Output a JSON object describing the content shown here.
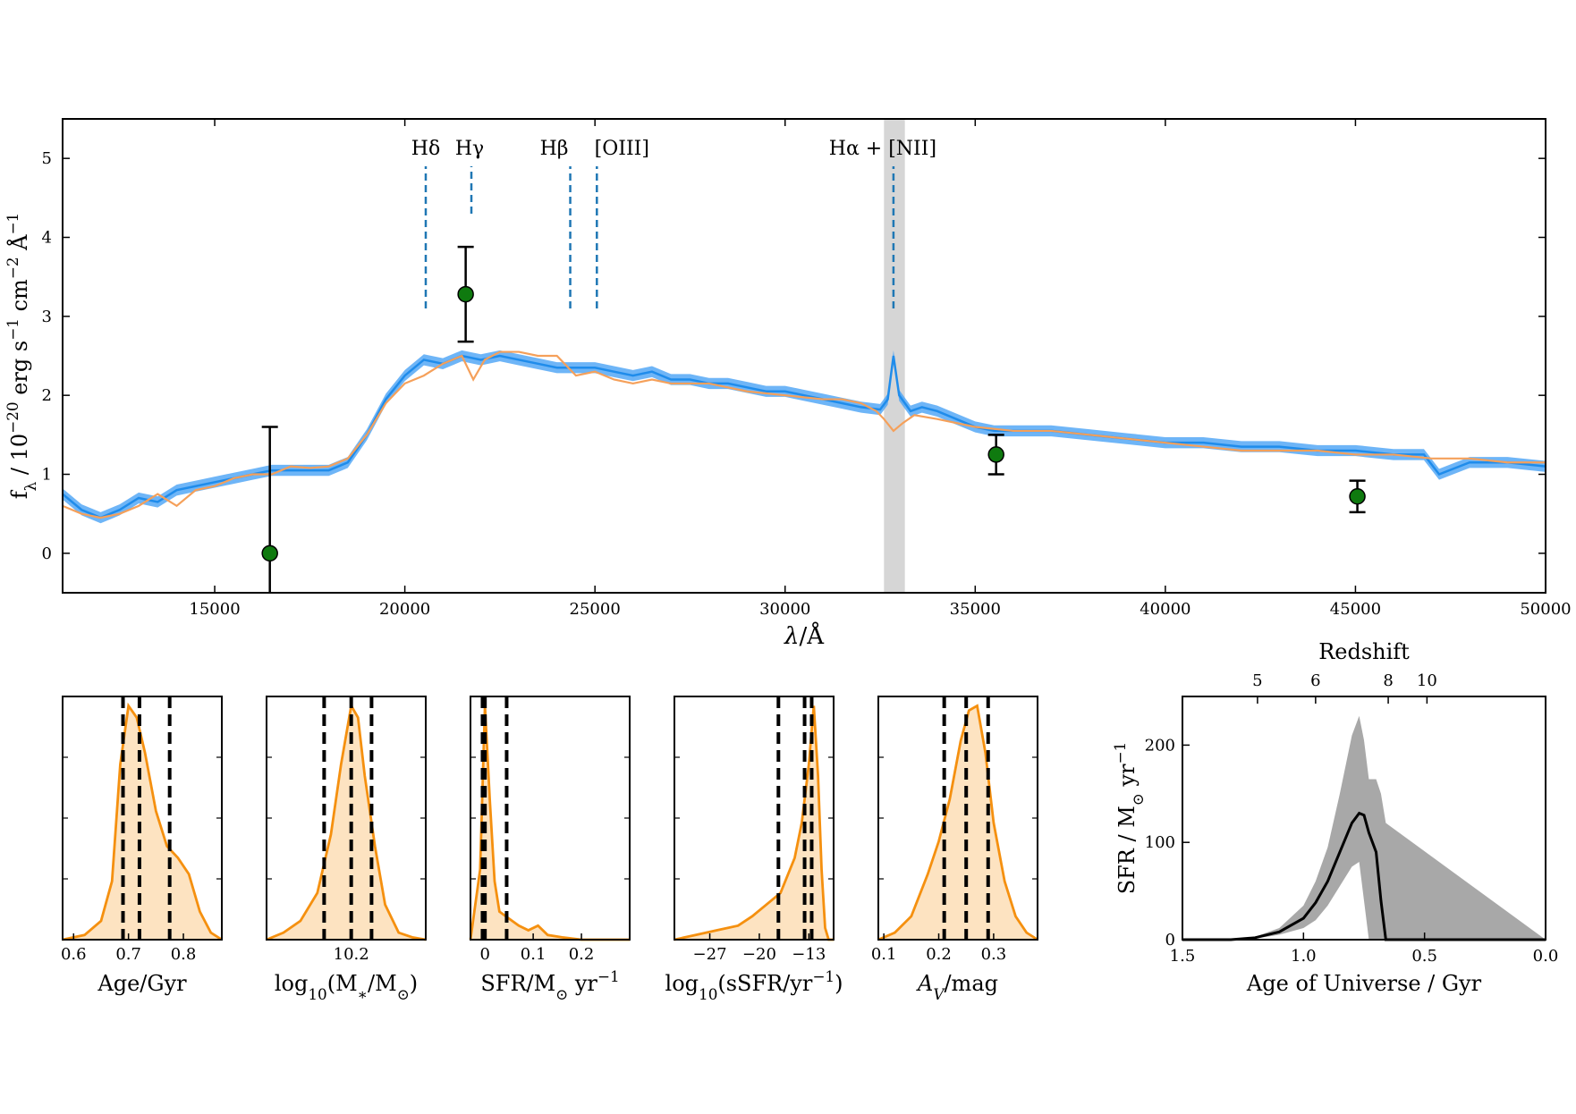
{
  "colors": {
    "spectrum": "#1f8ceb",
    "spectrum_band": "#4aa3f5",
    "model": "#f5a05a",
    "photometry": "#0f7a0f",
    "line_marker": "#1f77b4",
    "shade": "#c8c8c8",
    "posterior": "#f5900f",
    "posterior_fill": "#fde3c1",
    "sfh_band": "#a8a8a8"
  },
  "chart_data": [
    {
      "type": "line",
      "id": "spectrum",
      "xlabel": "λ/Å",
      "ylabel": "f_λ / 10^-20 erg s^-1 cm^-2 Å^-1",
      "xlim": [
        11000,
        50000
      ],
      "ylim": [
        -0.5,
        5.5
      ],
      "xticks": [
        15000,
        20000,
        25000,
        30000,
        35000,
        40000,
        45000,
        50000
      ],
      "yticks": [
        0,
        1,
        2,
        3,
        4,
        5
      ],
      "shaded_region": [
        32600,
        33150
      ],
      "series": [
        {
          "kind": "observed_spectrum",
          "x": [
            11000,
            11500,
            12000,
            12500,
            13000,
            13500,
            14000,
            14500,
            15000,
            15500,
            16000,
            16500,
            17000,
            17500,
            18000,
            18500,
            19000,
            19500,
            20000,
            20500,
            21000,
            21500,
            22000,
            22500,
            23000,
            23500,
            24000,
            24500,
            25000,
            25500,
            26000,
            26500,
            27000,
            27500,
            28000,
            28500,
            29000,
            29500,
            30000,
            30500,
            31000,
            31500,
            32000,
            32500,
            32700,
            32850,
            33000,
            33300,
            33600,
            34000,
            34500,
            35000,
            35500,
            36000,
            37000,
            38000,
            39000,
            40000,
            41000,
            42000,
            43000,
            44000,
            45000,
            46000,
            46800,
            47200,
            48000,
            49000,
            50000
          ],
          "y": [
            0.75,
            0.55,
            0.45,
            0.55,
            0.7,
            0.65,
            0.8,
            0.85,
            0.9,
            0.95,
            1.0,
            1.05,
            1.05,
            1.05,
            1.05,
            1.15,
            1.5,
            1.95,
            2.25,
            2.45,
            2.4,
            2.5,
            2.45,
            2.5,
            2.45,
            2.4,
            2.35,
            2.35,
            2.35,
            2.3,
            2.25,
            2.3,
            2.2,
            2.2,
            2.15,
            2.15,
            2.1,
            2.05,
            2.05,
            2.0,
            1.95,
            1.9,
            1.85,
            1.82,
            1.95,
            2.5,
            2.0,
            1.8,
            1.85,
            1.8,
            1.7,
            1.6,
            1.55,
            1.55,
            1.55,
            1.5,
            1.45,
            1.4,
            1.4,
            1.35,
            1.35,
            1.3,
            1.3,
            1.25,
            1.25,
            1.0,
            1.15,
            1.15,
            1.1
          ],
          "band_halfwidth": 0.07
        },
        {
          "kind": "model_fit",
          "x": [
            11000,
            11500,
            12000,
            12500,
            13000,
            13500,
            14000,
            14500,
            15000,
            15500,
            16000,
            16500,
            17000,
            17500,
            18000,
            18500,
            19000,
            19500,
            20000,
            20500,
            21000,
            21500,
            21800,
            22100,
            22500,
            23000,
            23500,
            24000,
            24500,
            25000,
            25500,
            26000,
            26500,
            27000,
            28000,
            29000,
            30000,
            31000,
            31500,
            32000,
            32400,
            32600,
            32850,
            33100,
            33400,
            34000,
            35000,
            36000,
            37000,
            38000,
            39000,
            40000,
            41000,
            42000,
            43000,
            44000,
            45000,
            46000,
            47000,
            48000,
            49000,
            50000
          ],
          "y": [
            0.6,
            0.5,
            0.45,
            0.5,
            0.6,
            0.75,
            0.6,
            0.8,
            0.85,
            0.95,
            1.0,
            1.0,
            1.1,
            1.08,
            1.1,
            1.2,
            1.5,
            1.9,
            2.15,
            2.25,
            2.4,
            2.5,
            2.2,
            2.45,
            2.55,
            2.55,
            2.5,
            2.5,
            2.25,
            2.3,
            2.2,
            2.15,
            2.2,
            2.15,
            2.15,
            2.05,
            2.0,
            1.95,
            1.95,
            1.9,
            1.8,
            1.7,
            1.55,
            1.65,
            1.75,
            1.7,
            1.6,
            1.55,
            1.55,
            1.5,
            1.45,
            1.4,
            1.35,
            1.3,
            1.3,
            1.3,
            1.25,
            1.25,
            1.2,
            1.2,
            1.15,
            1.15
          ]
        }
      ],
      "photometry": [
        {
          "x": 16450,
          "y": 0.0,
          "err": 1.6
        },
        {
          "x": 21600,
          "y": 3.28,
          "err": 0.6
        },
        {
          "x": 35550,
          "y": 1.25,
          "err": 0.25
        },
        {
          "x": 45050,
          "y": 0.72,
          "err": 0.2
        }
      ],
      "emission_lines": [
        {
          "label": "Hδ",
          "x": 20550,
          "ymin": 3.1,
          "ymax": 4.9
        },
        {
          "label": "Hγ",
          "x": 21750,
          "ymin": 4.3,
          "ymax": 4.9
        },
        {
          "label": "Hβ",
          "x": 24350,
          "ymin": 3.1,
          "ymax": 4.9
        },
        {
          "label": "[OIII]",
          "x": 25050,
          "ymin": 3.1,
          "ymax": 4.9
        },
        {
          "label": "Hα + [NII]",
          "x": 32850,
          "ymin": 3.1,
          "ymax": 4.9
        }
      ]
    },
    {
      "type": "area",
      "id": "posterior-age",
      "xlabel": "Age/Gyr",
      "xlim": [
        0.58,
        0.87
      ],
      "xticks": [
        0.6,
        0.7,
        0.8
      ],
      "x": [
        0.58,
        0.62,
        0.65,
        0.67,
        0.685,
        0.7,
        0.715,
        0.73,
        0.75,
        0.77,
        0.79,
        0.81,
        0.83,
        0.85,
        0.87
      ],
      "y": [
        0.0,
        0.02,
        0.08,
        0.25,
        0.75,
        1.0,
        0.95,
        0.8,
        0.55,
        0.4,
        0.35,
        0.28,
        0.12,
        0.03,
        0.0
      ],
      "quantiles": [
        0.69,
        0.72,
        0.775
      ]
    },
    {
      "type": "area",
      "id": "posterior-mass",
      "xlabel": "log10(M*/M☉)",
      "xlim": [
        9.95,
        10.42
      ],
      "xticks": [
        10.2
      ],
      "x": [
        9.95,
        10.0,
        10.05,
        10.1,
        10.14,
        10.17,
        10.2,
        10.22,
        10.24,
        10.27,
        10.3,
        10.34,
        10.38,
        10.42
      ],
      "y": [
        0.0,
        0.03,
        0.08,
        0.2,
        0.45,
        0.75,
        1.0,
        0.95,
        0.7,
        0.4,
        0.15,
        0.03,
        0.01,
        0.0
      ],
      "quantiles": [
        10.12,
        10.2,
        10.26
      ]
    },
    {
      "type": "area",
      "id": "posterior-sfr",
      "xlabel": "SFR/M☉ yr^-1",
      "xlim": [
        -0.03,
        0.3
      ],
      "xticks": [
        0.0,
        0.1,
        0.2
      ],
      "x": [
        -0.03,
        -0.01,
        0.0,
        0.01,
        0.02,
        0.03,
        0.05,
        0.07,
        0.09,
        0.11,
        0.13,
        0.16,
        0.2,
        0.25,
        0.3
      ],
      "y": [
        0.0,
        0.3,
        1.0,
        0.6,
        0.25,
        0.12,
        0.09,
        0.06,
        0.04,
        0.06,
        0.02,
        0.01,
        0.0,
        0.0,
        0.0
      ],
      "quantiles": [
        -0.005,
        0.0,
        0.045
      ]
    },
    {
      "type": "area",
      "id": "posterior-ssfr",
      "xlabel": "log10(sSFR/yr^-1)",
      "xlim": [
        -32,
        -9.5
      ],
      "xticks": [
        -27,
        -20,
        -13
      ],
      "x": [
        -32,
        -29,
        -26,
        -23,
        -21,
        -19,
        -17,
        -15,
        -14,
        -13,
        -12.3,
        -11.7,
        -11.2,
        -10.7,
        -10.2,
        -9.5
      ],
      "y": [
        0.0,
        0.02,
        0.04,
        0.06,
        0.1,
        0.15,
        0.2,
        0.35,
        0.5,
        0.75,
        1.0,
        0.7,
        0.3,
        0.05,
        0.0,
        0.0
      ],
      "quantiles": [
        -17.3,
        -13.6,
        -12.6
      ]
    },
    {
      "type": "area",
      "id": "posterior-av",
      "xlabel": "A_V/mag",
      "xlim": [
        0.09,
        0.38
      ],
      "xticks": [
        0.1,
        0.2,
        0.3
      ],
      "x": [
        0.09,
        0.12,
        0.15,
        0.18,
        0.2,
        0.22,
        0.24,
        0.255,
        0.27,
        0.285,
        0.3,
        0.32,
        0.34,
        0.36,
        0.38
      ],
      "y": [
        0.0,
        0.03,
        0.1,
        0.28,
        0.42,
        0.6,
        0.85,
        0.98,
        1.0,
        0.8,
        0.5,
        0.25,
        0.1,
        0.03,
        0.0
      ],
      "quantiles": [
        0.21,
        0.25,
        0.29
      ]
    },
    {
      "type": "line",
      "id": "sfh",
      "xlabel": "Age of Universe / Gyr",
      "ylabel": "SFR / M☉ yr^-1",
      "top_label": "Redshift",
      "xlim": [
        1.5,
        0.0
      ],
      "ylim": [
        0,
        250
      ],
      "xticks": [
        1.5,
        1.0,
        0.5,
        0.0
      ],
      "yticks": [
        0,
        100,
        200
      ],
      "top_ticks": [
        {
          "label": "5",
          "age": 1.19
        },
        {
          "label": "6",
          "age": 0.95
        },
        {
          "label": "8",
          "age": 0.65
        },
        {
          "label": "10",
          "age": 0.49
        }
      ],
      "x": [
        1.5,
        1.3,
        1.2,
        1.1,
        1.0,
        0.95,
        0.9,
        0.85,
        0.8,
        0.77,
        0.75,
        0.73,
        0.7,
        0.68,
        0.66,
        0.0
      ],
      "median": [
        0,
        0,
        2,
        8,
        22,
        38,
        60,
        90,
        120,
        130,
        128,
        110,
        90,
        40,
        0,
        0
      ],
      "upper": [
        0,
        0,
        3,
        12,
        35,
        60,
        95,
        150,
        210,
        230,
        205,
        165,
        165,
        150,
        120,
        0
      ],
      "lower": [
        0,
        0,
        1,
        5,
        12,
        20,
        35,
        55,
        75,
        80,
        40,
        0,
        0,
        0,
        0,
        0
      ]
    }
  ]
}
